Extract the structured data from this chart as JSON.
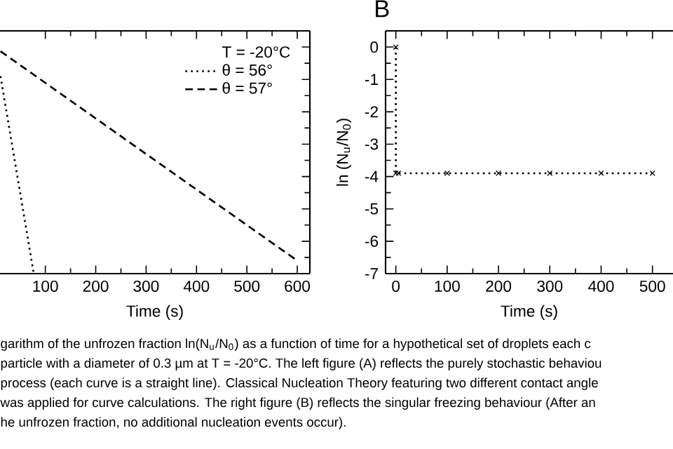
{
  "chart_data": [
    {
      "type": "line",
      "legend": "top right",
      "legend_title": "T = -20°C",
      "xlabel": "Time (s)",
      "tick_labels": "x",
      "xlim": [
        10,
        625
      ],
      "xticks": [
        100,
        200,
        300,
        400,
        500,
        600
      ],
      "ylim": [
        -7,
        0.5
      ],
      "yticks": [
        {
          "value": 0,
          "label": null
        },
        {
          "value": -1,
          "label": null
        },
        {
          "value": -2,
          "label": null
        },
        {
          "value": -3,
          "label": null
        },
        {
          "value": -4,
          "label": null
        },
        {
          "value": -5,
          "label": null
        },
        {
          "value": -6,
          "label": null
        },
        {
          "value": -7,
          "label": null
        }
      ],
      "series": [
        {
          "name": "θ = 56°",
          "color": "#000000",
          "line_style": "dotted",
          "x": [
            11,
            77
          ],
          "values": [
            -0.9,
            -7
          ]
        },
        {
          "name": "θ = 57°",
          "color": "#000000",
          "line_style": "dashed",
          "x": [
            11,
            600
          ],
          "values": [
            -0.13,
            -6.6
          ]
        }
      ],
      "annotations": [
        "garithm of the unfrozen fraction ln(N$_{u}$/N$_{0}$) as a function of time for a hypothetical set of droplets each c",
        "particle with a diameter of 0.3 µm at T = -20°C. The left figure (A) reflects the purely stochastic behaviou",
        "process (each curve is a straight line). Classical Nucleation Theory featuring two different contact angle",
        "was applied for curve calculations. The right figure (B) reflects the singular freezing behaviour (After an",
        "he unfrozen fraction, no additional nucleation events occur)."
      ]
    },
    {
      "type": "line",
      "title": "B",
      "xlabel": "Time (s)",
      "ylabel": "ln (N$_{u}$/N$_{0}$)",
      "marker": "cross",
      "xlim": [
        -20,
        540
      ],
      "xticks": [
        0,
        100,
        200,
        300,
        400,
        500
      ],
      "ylim": [
        -7,
        0.5
      ],
      "yticks": [
        0,
        -1,
        -2,
        -3,
        -4,
        -5,
        -6,
        -7
      ],
      "series": [
        {
          "color": "#000000",
          "line_style": "dotted",
          "x": [
            0,
            0,
            5,
            100,
            200,
            300,
            400,
            500
          ],
          "values": [
            0,
            -3.9,
            -3.9,
            -3.9,
            -3.9,
            -3.9,
            -3.9,
            -3.9
          ]
        }
      ]
    }
  ]
}
